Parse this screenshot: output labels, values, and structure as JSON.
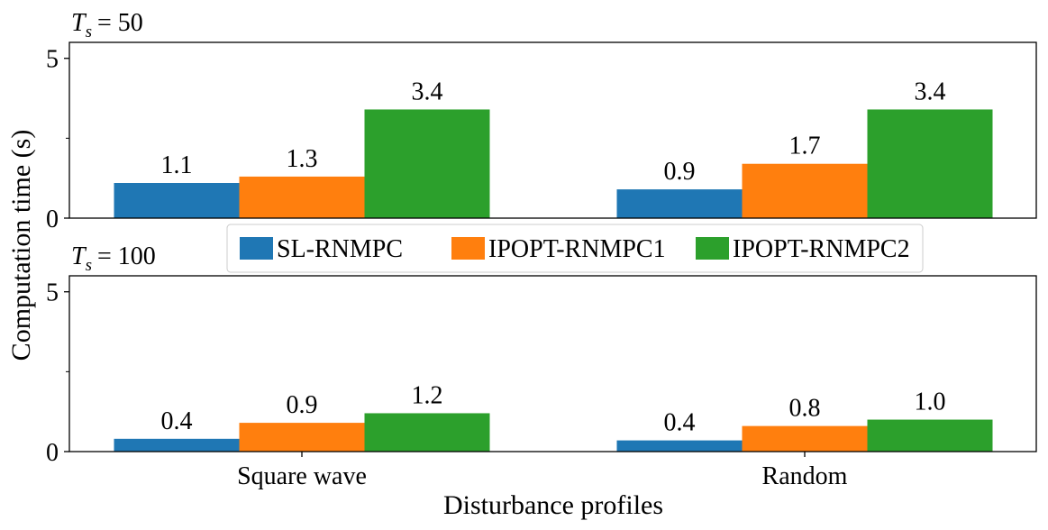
{
  "figure": {
    "ylabel": "Computation time (s)",
    "xlabel": "Disturbance profiles"
  },
  "legend": {
    "items": [
      {
        "label": "SL-RNMPC",
        "color": "#1f77b4"
      },
      {
        "label": "IPOPT-RNMPC1",
        "color": "#ff7f0e"
      },
      {
        "label": "IPOPT-RNMPC2",
        "color": "#2ca02c"
      }
    ]
  },
  "chart_data": [
    {
      "type": "bar",
      "title_symbol": "T",
      "title_subscript": "s",
      "title_rest": "= 50",
      "categories": [
        "Square wave",
        "Random"
      ],
      "series": [
        {
          "name": "SL-RNMPC",
          "values": [
            1.1,
            0.9
          ],
          "labels": [
            "1.1",
            "0.9"
          ],
          "color": "#1f77b4"
        },
        {
          "name": "IPOPT-RNMPC1",
          "values": [
            1.3,
            1.7
          ],
          "labels": [
            "1.3",
            "1.7"
          ],
          "color": "#ff7f0e"
        },
        {
          "name": "IPOPT-RNMPC2",
          "values": [
            3.4,
            3.4
          ],
          "labels": [
            "3.4",
            "3.4"
          ],
          "color": "#2ca02c"
        }
      ],
      "ylim": [
        0,
        5.5
      ],
      "yticks_major": [
        0,
        5
      ],
      "yticks_minor": [
        2.5
      ],
      "ytick_labels": [
        "0",
        "5"
      ],
      "show_xticks": false
    },
    {
      "type": "bar",
      "title_symbol": "T",
      "title_subscript": "s",
      "title_rest": "= 100",
      "categories": [
        "Square wave",
        "Random"
      ],
      "series": [
        {
          "name": "SL-RNMPC",
          "values": [
            0.4,
            0.35
          ],
          "labels": [
            "0.4",
            "0.4"
          ],
          "color": "#1f77b4"
        },
        {
          "name": "IPOPT-RNMPC1",
          "values": [
            0.9,
            0.8
          ],
          "labels": [
            "0.9",
            "0.8"
          ],
          "color": "#ff7f0e"
        },
        {
          "name": "IPOPT-RNMPC2",
          "values": [
            1.2,
            1.0
          ],
          "labels": [
            "1.2",
            "1.0"
          ],
          "color": "#2ca02c"
        }
      ],
      "ylim": [
        0,
        5.5
      ],
      "yticks_major": [
        0,
        5
      ],
      "yticks_minor": [
        2.5
      ],
      "ytick_labels": [
        "0",
        "5"
      ],
      "show_xticks": true
    }
  ]
}
